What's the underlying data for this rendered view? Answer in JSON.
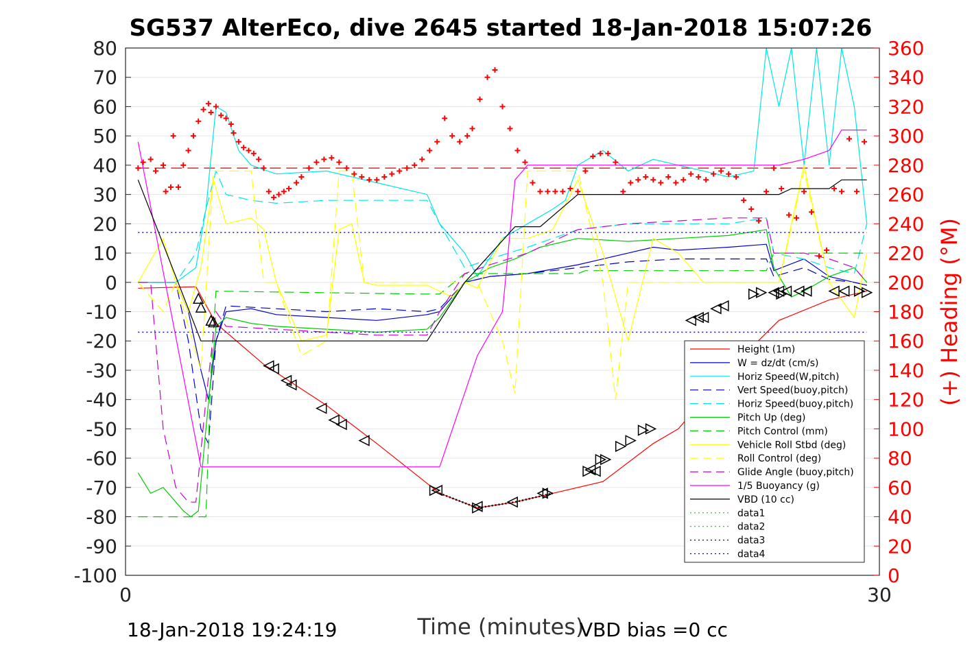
{
  "chart_data": {
    "type": "line",
    "title": "SG537 AlterEco, dive 2645 started 18-Jan-2018 15:07:26",
    "xlabel": "Time (minutes)",
    "ylabel_right": "(+) Heading (°M)",
    "xlim": [
      0,
      30
    ],
    "ylim": [
      -100,
      80
    ],
    "ylim_right": [
      0,
      360
    ],
    "x_ticks": [
      "0",
      "30"
    ],
    "y_ticks": [
      "80",
      "70",
      "60",
      "50",
      "40",
      "30",
      "20",
      "10",
      "0",
      "-10",
      "-20",
      "-30",
      "-40",
      "-50",
      "-60",
      "-70",
      "-80",
      "-90",
      "-100"
    ],
    "y_ticks_right": [
      "360",
      "340",
      "320",
      "300",
      "280",
      "260",
      "240",
      "220",
      "200",
      "180",
      "160",
      "140",
      "120",
      "100",
      "80",
      "60",
      "40",
      "20",
      "0"
    ],
    "grid": true,
    "legend_position": "bottom-right",
    "footer_left": "18-Jan-2018 19:24:19",
    "footer_right": "VBD bias =0 cc",
    "series": [
      {
        "name": "Height (1m)",
        "color": "#ff0000",
        "style": "solid",
        "x": [
          0.5,
          2.8,
          3.6,
          5.5,
          8,
          10,
          12.5,
          14,
          15.5,
          17,
          19,
          21,
          22,
          24,
          26,
          28,
          29.5
        ],
        "y": [
          -2,
          -1.5,
          -14,
          -28,
          -42,
          -55,
          -72,
          -77,
          -75,
          -72,
          -68,
          -55,
          -50,
          -30,
          -13,
          -6,
          -3
        ]
      },
      {
        "name": "W = dz/dt (cm/s)",
        "color": "#0000cc",
        "style": "solid",
        "x": [
          0.5,
          2,
          2.5,
          3,
          3.3,
          3.6,
          4,
          5,
          6,
          8,
          10,
          12,
          12.5,
          13.5,
          14.5,
          16,
          18,
          20,
          21,
          22,
          24,
          25.5,
          25.8,
          27,
          28,
          29,
          29.5
        ],
        "y": [
          0,
          0,
          -10,
          -30,
          -40,
          -20,
          -10,
          -9,
          -11,
          -12,
          -13,
          -11,
          -10,
          0,
          2,
          3,
          6,
          10,
          12,
          11,
          12,
          13,
          4,
          8,
          2,
          0,
          -1
        ]
      },
      {
        "name": "Horiz Speed(W,pitch)",
        "color": "#00e5e5",
        "style": "solid",
        "x": [
          0.5,
          2,
          2.8,
          3.2,
          3.6,
          4,
          4.5,
          5,
          6,
          8,
          10,
          12,
          12.5,
          13.5,
          14,
          15,
          16,
          17,
          17.5,
          18,
          19,
          20,
          21,
          22,
          23,
          24,
          25,
          25.5,
          26,
          26.5,
          27,
          27.5,
          28,
          28.5,
          29,
          29.5
        ],
        "y": [
          0,
          0,
          5,
          25,
          60,
          58,
          45,
          40,
          37,
          38,
          34,
          30,
          20,
          10,
          2,
          15,
          20,
          25,
          28,
          40,
          45,
          38,
          42,
          40,
          38,
          36,
          38,
          80,
          60,
          80,
          40,
          80,
          40,
          80,
          60,
          20
        ]
      },
      {
        "name": "Vert Speed(buoy,pitch)",
        "color": "#0000cc",
        "style": "dashed",
        "x": [
          0.5,
          2,
          2.5,
          3,
          3.3,
          3.6,
          4,
          6,
          8,
          10,
          12,
          12.5,
          13.5,
          14.5,
          16,
          18,
          20,
          22,
          24,
          25.5,
          25.8,
          27,
          28,
          29,
          29.5
        ],
        "y": [
          0,
          0,
          -20,
          -50,
          -55,
          -20,
          -8,
          -9,
          -10,
          -9,
          -10,
          -9,
          0,
          2,
          3,
          5,
          7,
          8,
          8,
          8,
          2,
          5,
          1,
          0,
          -1
        ]
      },
      {
        "name": "Horiz Speed(buoy,pitch)",
        "color": "#00e5e5",
        "style": "dashed",
        "x": [
          0.5,
          2,
          2.8,
          3.2,
          3.6,
          4,
          5,
          6,
          8,
          10,
          12,
          12.5,
          13.5,
          14.5,
          16,
          18,
          20,
          22,
          24,
          25.5,
          25.8,
          27,
          28,
          29,
          29.5
        ],
        "y": [
          0,
          0,
          10,
          25,
          38,
          30,
          28,
          27,
          28,
          28,
          28,
          20,
          5,
          8,
          12,
          18,
          20,
          20,
          20,
          22,
          10,
          8,
          5,
          3,
          20
        ]
      },
      {
        "name": "Pitch Up (deg)",
        "color": "#00cc00",
        "style": "solid",
        "x": [
          0.5,
          1,
          1.5,
          2,
          2.3,
          2.6,
          2.9,
          3.2,
          3.6,
          4,
          5,
          6,
          8,
          10,
          12,
          12.5,
          13.5,
          14.5,
          15.5,
          16.5,
          18,
          20,
          22,
          24,
          25.5,
          25.8,
          26.5,
          27,
          28,
          29,
          29.5
        ],
        "y": [
          -65,
          -72,
          -70,
          -75,
          -78,
          -80,
          -78,
          -50,
          -15,
          -12,
          -14,
          -15,
          -16,
          -17,
          -16,
          -12,
          0,
          5,
          8,
          12,
          15,
          14,
          15,
          16,
          18,
          5,
          -5,
          -3,
          2,
          5,
          0
        ]
      },
      {
        "name": "Pitch Control (mm)",
        "color": "#00cc00",
        "style": "dashed",
        "x": [
          0.5,
          3.2,
          3.4,
          3.6,
          12,
          12.5,
          13.5,
          18,
          18.3,
          25.5,
          25.8,
          29.5
        ],
        "y": [
          -80,
          -80,
          -30,
          -3,
          -4,
          -4,
          3,
          3,
          4,
          4,
          10,
          10
        ]
      },
      {
        "name": "Vehicle Roll Stbd (deg)",
        "color": "#ffff00",
        "style": "solid",
        "x": [
          0.5,
          1.5,
          2,
          2.5,
          3,
          3.5,
          4,
          5,
          5.5,
          6,
          7,
          8,
          8.5,
          9,
          9.5,
          10,
          11,
          12,
          13,
          13.5,
          14,
          15,
          16,
          17,
          18,
          19,
          20,
          21,
          22,
          23,
          24,
          25,
          26,
          27,
          28,
          29,
          29.5
        ],
        "y": [
          0,
          15,
          0,
          -10,
          5,
          35,
          20,
          22,
          18,
          0,
          -20,
          -18,
          18,
          20,
          0,
          -1,
          -1,
          -1,
          -5,
          0,
          -2,
          15,
          15,
          18,
          35,
          10,
          -20,
          15,
          10,
          0,
          0,
          0,
          0,
          40,
          0,
          -12,
          10
        ]
      },
      {
        "name": "Roll Control (deg)",
        "color": "#ffff00",
        "style": "dashed",
        "x": [
          0.5,
          1.5,
          2,
          3,
          3.5,
          4,
          5,
          5.5,
          6,
          7,
          8,
          8.5,
          9,
          9.5,
          11,
          12,
          13,
          14,
          15,
          15.5,
          16,
          17,
          18,
          19,
          19.5,
          20,
          21,
          24,
          25.5,
          26,
          27,
          28,
          29,
          29.5
        ],
        "y": [
          0,
          -10,
          0,
          -30,
          38,
          38,
          38,
          0,
          0,
          -25,
          -20,
          38,
          38,
          0,
          0,
          0,
          0,
          0,
          -20,
          -38,
          38,
          38,
          38,
          0,
          -40,
          0,
          0,
          0,
          0,
          0,
          38,
          0,
          0,
          0
        ]
      },
      {
        "name": "Glide Angle (buoy,pitch)",
        "color": "#cc00cc",
        "style": "dashed",
        "x": [
          0.5,
          1,
          1.5,
          2,
          2.5,
          2.8,
          3.2,
          3.6,
          4,
          6,
          8,
          10,
          12,
          12.5,
          13.5,
          14.5,
          16,
          18,
          20,
          22,
          24,
          25.5,
          25.8,
          27,
          28,
          29,
          29.5
        ],
        "y": [
          0,
          0,
          -50,
          -70,
          -75,
          -75,
          -40,
          -10,
          -15,
          -16,
          -17,
          -18,
          -18,
          -10,
          3,
          6,
          10,
          18,
          20,
          21,
          22,
          22,
          10,
          10,
          8,
          5,
          0
        ]
      },
      {
        "name": "1/5 Buoyancy (g)",
        "color": "#ff00ff",
        "style": "solid",
        "x": [
          0.5,
          3,
          3.5,
          12,
          12.5,
          14,
          15,
          15.5,
          16,
          18,
          21,
          22,
          25.5,
          26,
          27,
          28,
          28.5,
          29.5
        ],
        "y": [
          48,
          -63,
          -63,
          -63,
          -63,
          -25,
          -10,
          35,
          40,
          40,
          40,
          40,
          40,
          40,
          42,
          45,
          52,
          52
        ]
      },
      {
        "name": "VBD (10 cc)",
        "color": "#000000",
        "style": "solid",
        "x": [
          0.5,
          3,
          3.5,
          12,
          13.5,
          15.5,
          16.5,
          18,
          26,
          26.5,
          28,
          28.5,
          29.5
        ],
        "y": [
          35,
          -20,
          -20,
          -20,
          0,
          19,
          19,
          30,
          30,
          32,
          32,
          35,
          35
        ]
      },
      {
        "name": "data1",
        "color": "#00cc00",
        "style": "dotted",
        "x": [],
        "y": []
      },
      {
        "name": "data2",
        "color": "#00cc00",
        "style": "dotted",
        "x": [],
        "y": []
      },
      {
        "name": "data3",
        "color": "#0000aa",
        "style": "dotted",
        "x": [
          0.5,
          29.5
        ],
        "y": [
          17,
          17
        ]
      },
      {
        "name": "data4",
        "color": "#0000aa",
        "style": "dotted",
        "x": [
          0.5,
          29.5
        ],
        "y": [
          -17,
          -17
        ]
      }
    ],
    "heading_reference": {
      "color": "#cc0000",
      "style": "dashed",
      "y_right": 278
    },
    "heading_points": {
      "color": "#ff0000",
      "x": [
        0.5,
        0.7,
        1.0,
        1.2,
        1.5,
        1.6,
        1.8,
        1.9,
        2.1,
        2.3,
        2.5,
        2.7,
        2.9,
        3.1,
        3.3,
        3.4,
        3.6,
        3.8,
        4.0,
        4.2,
        4.3,
        4.5,
        4.7,
        4.9,
        5.1,
        5.3,
        5.5,
        5.7,
        5.9,
        6.1,
        6.3,
        6.5,
        6.8,
        7.0,
        7.3,
        7.6,
        7.9,
        8.2,
        8.5,
        8.8,
        9.1,
        9.4,
        9.7,
        10.0,
        10.3,
        10.6,
        10.9,
        11.2,
        11.5,
        11.8,
        12.1,
        12.4,
        12.7,
        13.0,
        13.3,
        13.6,
        13.8,
        14.1,
        14.4,
        14.7,
        15.0,
        15.3,
        15.6,
        15.9,
        16.2,
        16.5,
        16.8,
        17.1,
        17.4,
        17.7,
        18.0,
        18.3,
        18.6,
        18.9,
        19.2,
        19.5,
        19.8,
        20.1,
        20.4,
        20.7,
        21.0,
        21.3,
        21.6,
        21.9,
        22.2,
        22.5,
        22.8,
        23.1,
        23.4,
        23.7,
        24.0,
        24.3,
        24.6,
        24.9,
        25.2,
        25.5,
        25.8,
        26.1,
        26.4,
        26.7,
        27.0,
        27.3,
        27.6,
        27.9,
        28.2,
        28.5,
        28.8,
        29.1,
        29.4
      ],
      "y": [
        278,
        282,
        284,
        276,
        280,
        262,
        265,
        300,
        265,
        280,
        290,
        300,
        310,
        318,
        322,
        316,
        320,
        314,
        312,
        308,
        302,
        296,
        292,
        290,
        288,
        284,
        278,
        262,
        258,
        260,
        262,
        264,
        268,
        272,
        278,
        282,
        284,
        285,
        282,
        278,
        274,
        272,
        270,
        270,
        272,
        274,
        276,
        278,
        280,
        284,
        290,
        296,
        312,
        300,
        296,
        300,
        305,
        325,
        340,
        345,
        320,
        305,
        290,
        282,
        268,
        262,
        262,
        262,
        262,
        264,
        262,
        276,
        286,
        288,
        288,
        282,
        262,
        268,
        270,
        272,
        270,
        268,
        272,
        268,
        270,
        274,
        272,
        270,
        274,
        276,
        274,
        272,
        256,
        250,
        242,
        262,
        278,
        264,
        246,
        244,
        262,
        248,
        218,
        222,
        264,
        262,
        298,
        262,
        296
      ]
    },
    "markers": {
      "color": "#000000",
      "up_triangles": [
        [
          2.9,
          -5.5
        ],
        [
          3.0,
          -8.5
        ],
        [
          3.4,
          -13
        ],
        [
          3.5,
          -13.5
        ]
      ],
      "left_triangles": [
        [
          5.7,
          -28.5
        ],
        [
          5.9,
          -29.5
        ],
        [
          6.4,
          -33.5
        ],
        [
          6.6,
          -35
        ],
        [
          7.8,
          -43
        ],
        [
          8.3,
          -47
        ],
        [
          8.6,
          -48.5
        ],
        [
          9.5,
          -54
        ],
        [
          12.4,
          -71
        ],
        [
          14.0,
          -76.5
        ],
        [
          15.4,
          -75
        ],
        [
          16.6,
          -72
        ],
        [
          18.5,
          -64
        ],
        [
          18.7,
          -64.5
        ],
        [
          22.5,
          -13
        ],
        [
          22.8,
          -12
        ],
        [
          23.0,
          -12
        ],
        [
          23.5,
          -9
        ],
        [
          23.8,
          -8
        ],
        [
          25.8,
          -3.5
        ],
        [
          26.0,
          -3
        ],
        [
          26.3,
          -3
        ],
        [
          26.8,
          -3
        ],
        [
          27.1,
          -3
        ],
        [
          28.2,
          -3
        ],
        [
          28.6,
          -3
        ]
      ],
      "right_triangles": [
        [
          12.3,
          -71
        ],
        [
          14.0,
          -77
        ],
        [
          16.8,
          -72
        ],
        [
          18.4,
          -64.5
        ],
        [
          18.9,
          -60.5
        ],
        [
          19.1,
          -60.5
        ],
        [
          19.7,
          -56
        ],
        [
          20.1,
          -54
        ],
        [
          20.6,
          -50.5
        ],
        [
          20.9,
          -50
        ],
        [
          25.0,
          -4
        ],
        [
          25.3,
          -3.5
        ],
        [
          26.1,
          -4
        ],
        [
          29.2,
          -3
        ],
        [
          29.5,
          -3.5
        ]
      ]
    }
  }
}
